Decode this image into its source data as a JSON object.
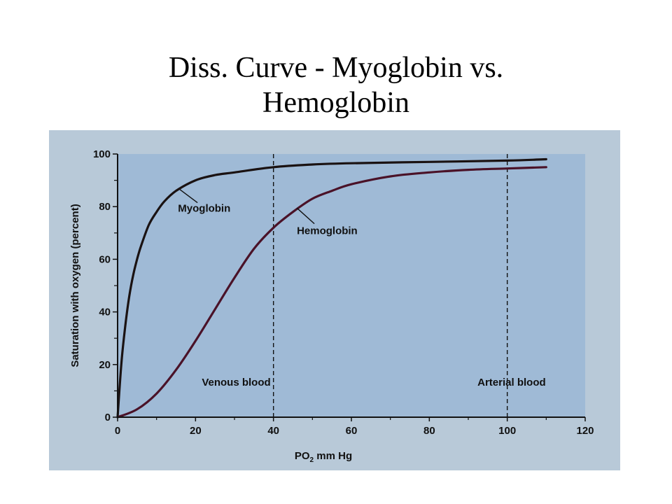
{
  "slide": {
    "title_line1": "Diss. Curve - Myoglobin vs.",
    "title_line2": "Hemoglobin"
  },
  "colors": {
    "panel_background": "#b8c9d8",
    "plot_background": "#9fbad6",
    "myoglobin_line": "#1a1212",
    "hemoglobin_line": "#4a1228",
    "axis": "#111111"
  },
  "chart_data": {
    "type": "line",
    "xlabel": "PO",
    "xlabel_subscript": "2",
    "xlabel_suffix": " mm Hg",
    "ylabel": "Saturation with oxygen (percent)",
    "xlim": [
      0,
      120
    ],
    "ylim": [
      0,
      100
    ],
    "x_ticks": [
      0,
      20,
      40,
      60,
      80,
      100,
      120
    ],
    "y_ticks": [
      0,
      20,
      40,
      60,
      80,
      100
    ],
    "grid": false,
    "series": [
      {
        "name": "Myoglobin",
        "x": [
          0,
          1,
          2,
          3,
          4,
          5,
          6,
          8,
          10,
          12,
          15,
          20,
          25,
          30,
          40,
          50,
          60,
          80,
          100,
          110
        ],
        "y": [
          0,
          21,
          35,
          46,
          54,
          60,
          65,
          73,
          78,
          82,
          86,
          90,
          92,
          93,
          95,
          96,
          96.5,
          97,
          97.5,
          98
        ]
      },
      {
        "name": "Hemoglobin",
        "x": [
          0,
          5,
          10,
          15,
          20,
          25,
          30,
          35,
          40,
          45,
          50,
          55,
          60,
          70,
          80,
          90,
          100,
          110
        ],
        "y": [
          0,
          3,
          9,
          18,
          29,
          41,
          53,
          64,
          72,
          78,
          83,
          86,
          88.5,
          91.5,
          93,
          94,
          94.5,
          95
        ]
      }
    ],
    "reference_lines": [
      {
        "x": 40,
        "label": "Venous blood"
      },
      {
        "x": 100,
        "label": "Arterial blood"
      }
    ],
    "annotations": [
      {
        "text": "Myoglobin",
        "series": "Myoglobin"
      },
      {
        "text": "Hemoglobin",
        "series": "Hemoglobin"
      }
    ]
  }
}
